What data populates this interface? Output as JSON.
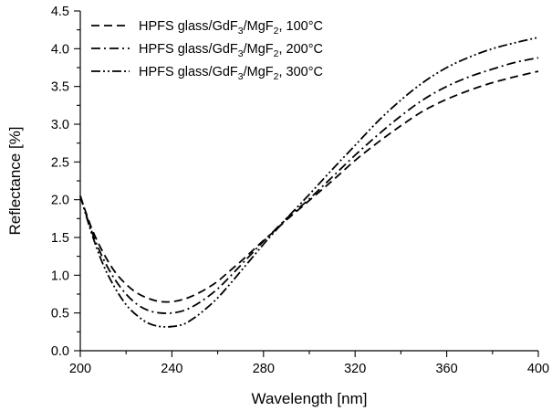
{
  "chart_data": {
    "type": "line",
    "xlabel": "Wavelength [nm]",
    "ylabel": "Reflectance [%]",
    "xlim": [
      200,
      400
    ],
    "ylim": [
      0.0,
      4.5
    ],
    "x_ticks": [
      200,
      240,
      280,
      320,
      360,
      400
    ],
    "x_tick_labels": [
      "200",
      "240",
      "280",
      "320",
      "360",
      "400"
    ],
    "x_minor_step": 20,
    "y_ticks": [
      0.0,
      0.5,
      1.0,
      1.5,
      2.0,
      2.5,
      3.0,
      3.5,
      4.0,
      4.5
    ],
    "y_tick_labels": [
      "0.0",
      "0.5",
      "1.0",
      "1.5",
      "2.0",
      "2.5",
      "3.0",
      "3.5",
      "4.0",
      "4.5"
    ],
    "y_minor_step": 0.25,
    "grid": false,
    "legend_position": "top-left",
    "series": [
      {
        "legend_prefix": "HPFS glass/GdF",
        "sub1": "3",
        "legend_mid": "/MgF",
        "sub2": "2",
        "legend_suffix": ", 100°C",
        "dash": "9,5",
        "x": [
          200,
          205,
          210,
          215,
          220,
          225,
          230,
          235,
          240,
          245,
          250,
          255,
          260,
          265,
          270,
          275,
          280,
          285,
          290,
          295,
          300,
          310,
          320,
          330,
          340,
          350,
          360,
          370,
          380,
          390,
          400
        ],
        "y": [
          2.05,
          1.62,
          1.3,
          1.05,
          0.88,
          0.76,
          0.69,
          0.65,
          0.65,
          0.68,
          0.74,
          0.82,
          0.92,
          1.05,
          1.18,
          1.32,
          1.46,
          1.59,
          1.73,
          1.86,
          1.99,
          2.25,
          2.52,
          2.76,
          2.98,
          3.18,
          3.33,
          3.45,
          3.55,
          3.63,
          3.7
        ]
      },
      {
        "legend_prefix": "HPFS glass/GdF",
        "sub1": "3",
        "legend_mid": "/MgF",
        "sub2": "2",
        "legend_suffix": ", 200°C",
        "dash": "10,4,2,4",
        "x": [
          200,
          205,
          210,
          215,
          220,
          225,
          230,
          235,
          240,
          245,
          250,
          255,
          260,
          265,
          270,
          275,
          280,
          285,
          290,
          295,
          300,
          310,
          320,
          330,
          340,
          350,
          360,
          370,
          380,
          390,
          400
        ],
        "y": [
          2.05,
          1.58,
          1.22,
          0.95,
          0.75,
          0.61,
          0.53,
          0.5,
          0.5,
          0.53,
          0.6,
          0.7,
          0.82,
          0.97,
          1.13,
          1.29,
          1.45,
          1.6,
          1.75,
          1.88,
          2.01,
          2.3,
          2.59,
          2.86,
          3.11,
          3.33,
          3.5,
          3.63,
          3.73,
          3.82,
          3.88
        ]
      },
      {
        "legend_prefix": "HPFS glass/GdF",
        "sub1": "3",
        "legend_mid": "/MgF",
        "sub2": "2",
        "legend_suffix": ", 300°C",
        "dash": "10,3,2,3,2,3",
        "x": [
          200,
          205,
          210,
          215,
          220,
          225,
          230,
          235,
          240,
          245,
          250,
          255,
          260,
          265,
          270,
          275,
          280,
          285,
          290,
          295,
          300,
          310,
          320,
          330,
          340,
          350,
          360,
          370,
          380,
          390,
          400
        ],
        "y": [
          2.05,
          1.55,
          1.14,
          0.84,
          0.61,
          0.46,
          0.36,
          0.32,
          0.32,
          0.35,
          0.44,
          0.56,
          0.7,
          0.87,
          1.05,
          1.23,
          1.41,
          1.58,
          1.75,
          1.91,
          2.07,
          2.4,
          2.72,
          3.04,
          3.32,
          3.56,
          3.75,
          3.89,
          4.0,
          4.08,
          4.15
        ]
      }
    ]
  }
}
